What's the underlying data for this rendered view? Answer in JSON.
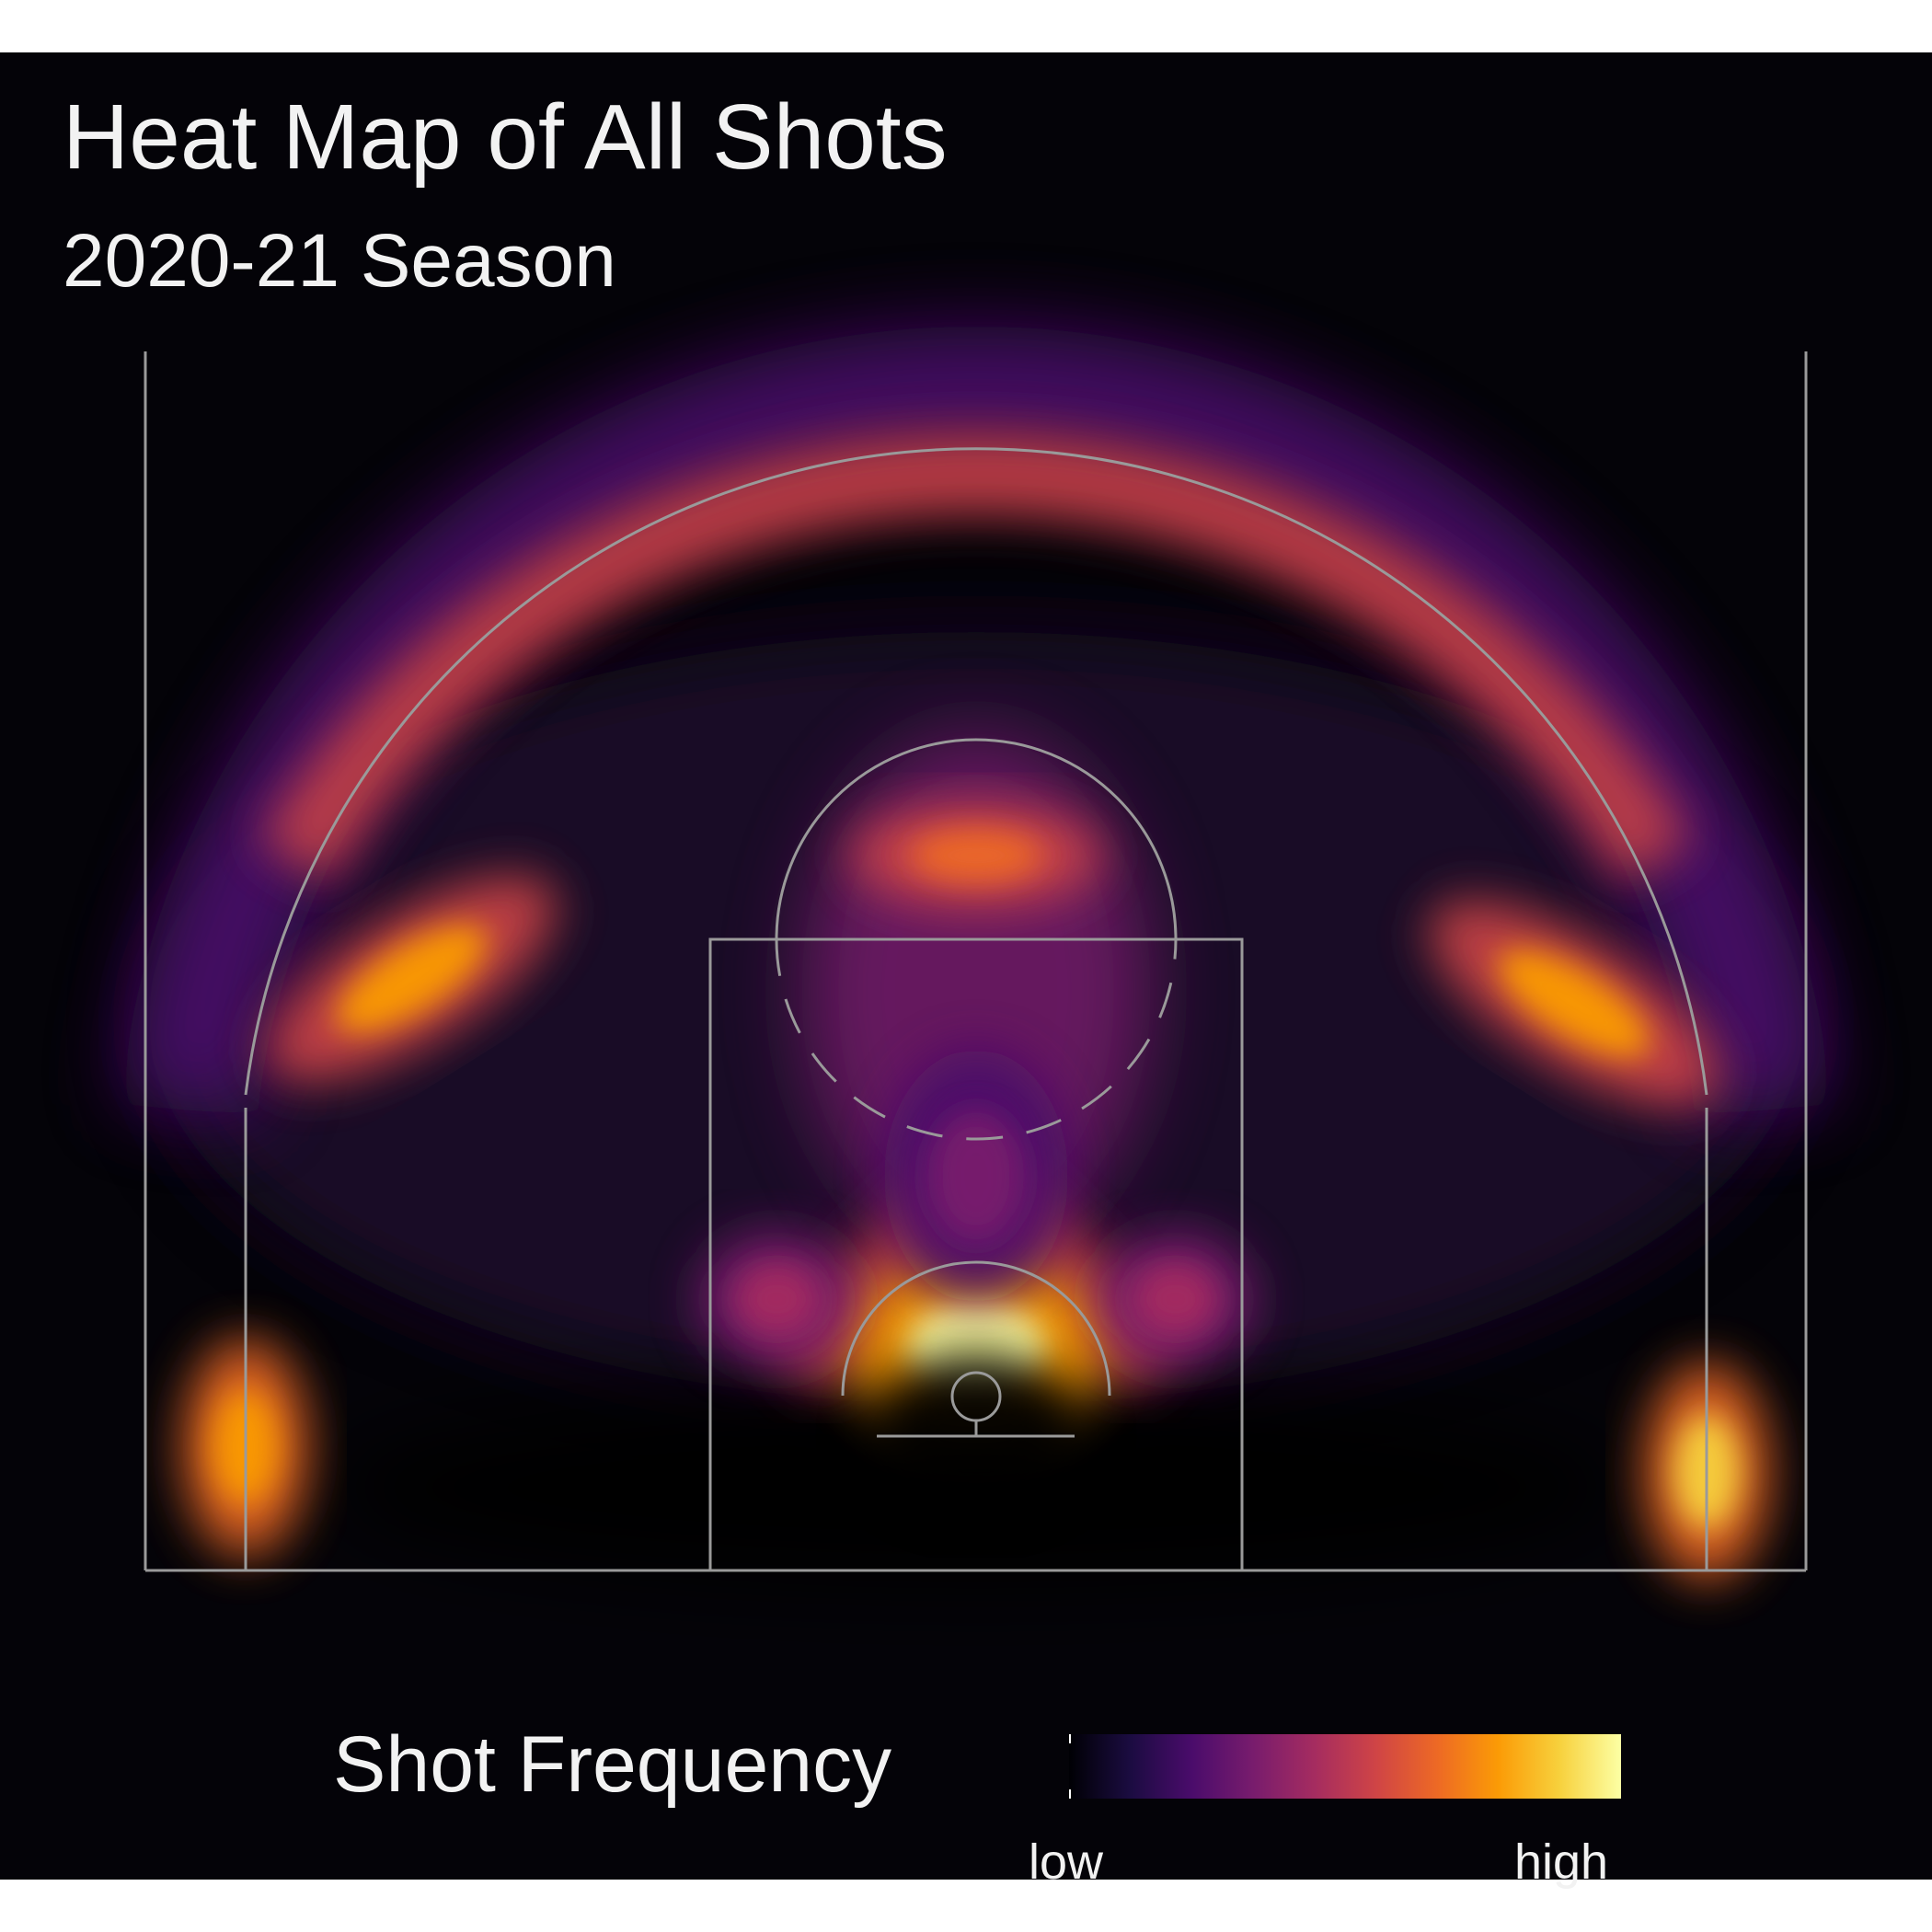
{
  "chart_data": {
    "type": "heatmap",
    "title": "Heat Map of All Shots",
    "subtitle": "2020-21 Season",
    "legend": {
      "title": "Shot Frequency",
      "low_label": "low",
      "high_label": "high",
      "position": "bottom",
      "colors": [
        "#000004",
        "#1b0c41",
        "#4a0c6b",
        "#781c6d",
        "#a52c60",
        "#cf4446",
        "#ed6925",
        "#fb9b06",
        "#f7d13d",
        "#fcffa4"
      ]
    },
    "hotspots": [
      {
        "zone": "near basket (paint)",
        "x": 0,
        "y": 9,
        "intensity": 1.0
      },
      {
        "zone": "left corner three",
        "x": -22,
        "y": 5,
        "intensity": 0.82
      },
      {
        "zone": "right corner three",
        "x": 22,
        "y": 4,
        "intensity": 0.86
      },
      {
        "zone": "left wing three",
        "x": -17,
        "y": 24,
        "intensity": 0.8
      },
      {
        "zone": "right wing three",
        "x": 18,
        "y": 23,
        "intensity": 0.8
      },
      {
        "zone": "top of key three",
        "x": 0,
        "y": 29,
        "intensity": 0.7
      },
      {
        "zone": "left elbow",
        "x": -6,
        "y": 11,
        "intensity": 0.42
      },
      {
        "zone": "right elbow",
        "x": 6,
        "y": 11,
        "intensity": 0.42
      },
      {
        "zone": "lane / free throw area",
        "x": 0,
        "y": 16,
        "intensity": 0.34
      }
    ],
    "xlim": [
      -25,
      25
    ],
    "ylim": [
      0,
      37
    ],
    "court": true
  }
}
